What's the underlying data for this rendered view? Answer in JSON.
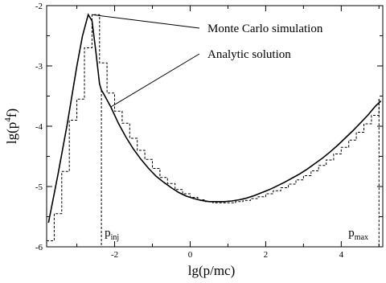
{
  "chart_data": {
    "type": "line",
    "title": "",
    "xlabel": "lg(p/mc)",
    "ylabel_base": "lg(p",
    "ylabel_sup": "4",
    "ylabel_tail": "f)",
    "xlim": [
      -3.8,
      5.1
    ],
    "ylim": [
      -6,
      -2
    ],
    "x_ticks": [
      -2,
      0,
      2,
      4
    ],
    "x_tick_labels": [
      "-2",
      "0",
      "2",
      "4"
    ],
    "y_ticks": [
      -6,
      -5,
      -4,
      -3,
      -2
    ],
    "y_tick_labels": [
      "-6",
      "-5",
      "-4",
      "-3",
      "-2"
    ],
    "grid": false,
    "series": [
      {
        "name": "Analytic solution",
        "style": "solid",
        "x": [
          -3.75,
          -3.5,
          -3.25,
          -3.0,
          -2.85,
          -2.7,
          -2.6,
          -2.5,
          -2.4,
          -2.35,
          -2.3,
          -2.1,
          -1.9,
          -1.7,
          -1.5,
          -1.3,
          -1.1,
          -0.9,
          -0.7,
          -0.5,
          -0.3,
          -0.1,
          0.1,
          0.3,
          0.5,
          0.7,
          0.9,
          1.1,
          1.3,
          1.5,
          1.7,
          1.9,
          2.1,
          2.3,
          2.5,
          2.7,
          2.9,
          3.1,
          3.3,
          3.5,
          3.7,
          3.9,
          4.1,
          4.3,
          4.5,
          4.7,
          4.9,
          5.05
        ],
        "y": [
          -5.6,
          -4.8,
          -3.95,
          -3.0,
          -2.5,
          -2.15,
          -2.25,
          -2.75,
          -3.3,
          -3.4,
          -3.45,
          -3.68,
          -3.95,
          -4.18,
          -4.38,
          -4.55,
          -4.7,
          -4.83,
          -4.93,
          -5.02,
          -5.1,
          -5.16,
          -5.2,
          -5.23,
          -5.25,
          -5.25,
          -5.25,
          -5.24,
          -5.22,
          -5.19,
          -5.15,
          -5.1,
          -5.05,
          -4.99,
          -4.93,
          -4.86,
          -4.79,
          -4.71,
          -4.62,
          -4.53,
          -4.43,
          -4.32,
          -4.2,
          -4.08,
          -3.95,
          -3.82,
          -3.67,
          -3.58
        ]
      },
      {
        "name": "Monte Carlo simulation",
        "style": "dashed-step",
        "x": [
          -3.8,
          -3.6,
          -3.4,
          -3.2,
          -3.0,
          -2.8,
          -2.6,
          -2.4,
          -2.2,
          -2.0,
          -1.8,
          -1.6,
          -1.4,
          -1.2,
          -1.0,
          -0.8,
          -0.6,
          -0.4,
          -0.2,
          0.0,
          0.2,
          0.4,
          0.6,
          0.8,
          1.0,
          1.2,
          1.4,
          1.6,
          1.8,
          2.0,
          2.2,
          2.4,
          2.6,
          2.8,
          3.0,
          3.2,
          3.4,
          3.6,
          3.8,
          4.0,
          4.2,
          4.4,
          4.6,
          4.8,
          5.0
        ],
        "y": [
          -5.9,
          -5.45,
          -4.75,
          -3.9,
          -3.55,
          -2.7,
          -2.15,
          -2.95,
          -3.45,
          -3.75,
          -3.95,
          -4.2,
          -4.4,
          -4.55,
          -4.7,
          -4.85,
          -4.95,
          -5.05,
          -5.12,
          -5.18,
          -5.22,
          -5.25,
          -5.27,
          -5.27,
          -5.27,
          -5.25,
          -5.23,
          -5.2,
          -5.17,
          -5.12,
          -5.07,
          -5.02,
          -4.96,
          -4.89,
          -4.82,
          -4.74,
          -4.65,
          -4.56,
          -4.46,
          -4.35,
          -4.23,
          -4.1,
          -3.96,
          -3.82,
          -3.55
        ]
      }
    ],
    "markers": [
      {
        "label": "p",
        "sub": "inj",
        "x": -2.35
      },
      {
        "label": "p",
        "sub": "max",
        "x": 5.0
      }
    ],
    "annotations": [
      {
        "text": "Monte Carlo simulation",
        "target_x": -2.6,
        "target_y": -2.15
      },
      {
        "text": "Analytic solution",
        "target_x": -2.1,
        "target_y": -3.68
      }
    ]
  }
}
